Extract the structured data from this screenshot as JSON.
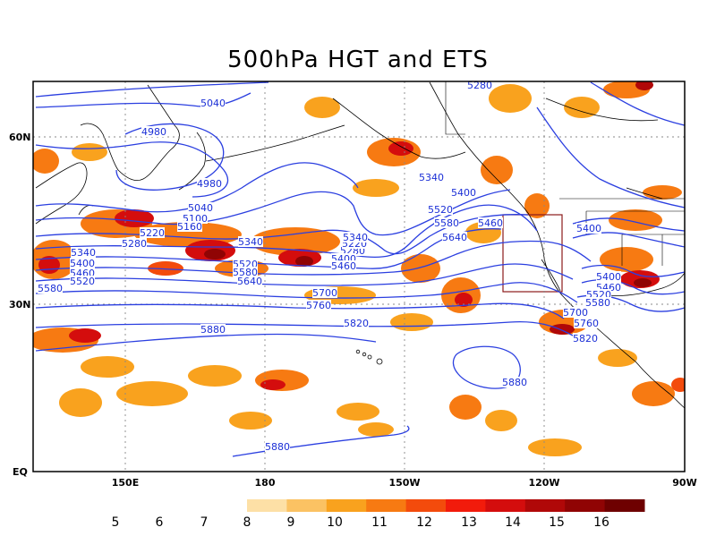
{
  "title": "500hPa HGT and ETS",
  "colors": {
    "contour": "#2b3fe0",
    "label": "#1b2fd6",
    "coast": "#000000",
    "grid": "#888888",
    "box": "#8b1a1a"
  },
  "axes": {
    "lat_labels": [
      "60N",
      "30N",
      "EQ"
    ],
    "lon_labels": [
      "150E",
      "180",
      "150W",
      "120W",
      "90W"
    ]
  },
  "colorbar": {
    "labels": [
      "5",
      "6",
      "7",
      "8",
      "9",
      "10",
      "11",
      "12",
      "13",
      "14",
      "15",
      "16"
    ],
    "swatch_colors": [
      "#fde0a6",
      "#fbc263",
      "#f9a21e",
      "#f77a12",
      "#f34b0c",
      "#f21b0b",
      "#d40d0d",
      "#b00808",
      "#900404",
      "#6e0000"
    ]
  },
  "contour_labels": [
    "5280",
    "5040",
    "4980",
    "4980",
    "5040",
    "5100",
    "5160",
    "5220",
    "5280",
    "5340",
    "5340",
    "5400",
    "5460",
    "5520",
    "5580",
    "5340",
    "5520",
    "5580",
    "5640",
    "5400",
    "5460",
    "5280",
    "5220",
    "5340",
    "5400",
    "5520",
    "5580",
    "5640",
    "5460",
    "5700",
    "5760",
    "5820",
    "5880",
    "5880",
    "5880",
    "5400",
    "5400",
    "5460",
    "5520",
    "5580",
    "5700",
    "5760",
    "5820"
  ]
}
